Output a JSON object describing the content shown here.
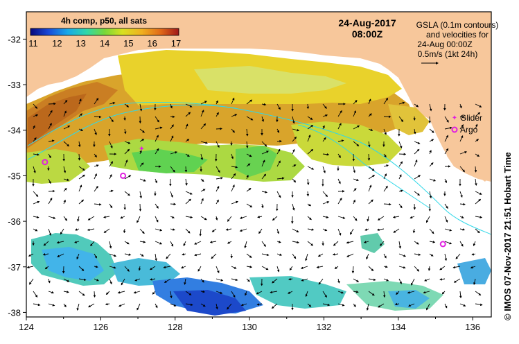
{
  "map": {
    "date": "24-Aug-2017",
    "time": "08:00Z",
    "composite_label": "4h comp, p50, all sats",
    "legend_ticks": [
      "11",
      "12",
      "13",
      "14",
      "15",
      "16",
      "17"
    ],
    "gsla_note": [
      "GSLA (0.1m contours)",
      "and velocities for",
      "24-Aug 00:00Z",
      "0.5m/s (1kt 24h)"
    ],
    "markers": {
      "glider": "Glider",
      "argo": "Argo"
    },
    "credit": "© IMOS 07-Nov-2017 21:51 Hobart Time",
    "x_ticks": [
      "124",
      "126",
      "128",
      "130",
      "132",
      "134",
      "136"
    ],
    "y_ticks": [
      "-32",
      "-33",
      "-34",
      "-35",
      "-36",
      "-37",
      "-38"
    ],
    "lon_range": [
      124,
      136.5
    ],
    "lat_range": [
      -38.1,
      -31.4
    ],
    "argo_positions": [
      [
        124.5,
        -34.7
      ],
      [
        126.6,
        -35.0
      ],
      [
        135.2,
        -36.5
      ]
    ],
    "glider_positions": [
      [
        127.1,
        -34.4
      ]
    ],
    "colors": {
      "land": "#f7c79b",
      "frame": "#000000",
      "marker": "#e020e0",
      "cbar": [
        "#08087a",
        "#1848d8",
        "#18a8e8",
        "#30d8a8",
        "#78d838",
        "#d8e020",
        "#f0b020",
        "#e06818",
        "#a01818"
      ]
    }
  }
}
